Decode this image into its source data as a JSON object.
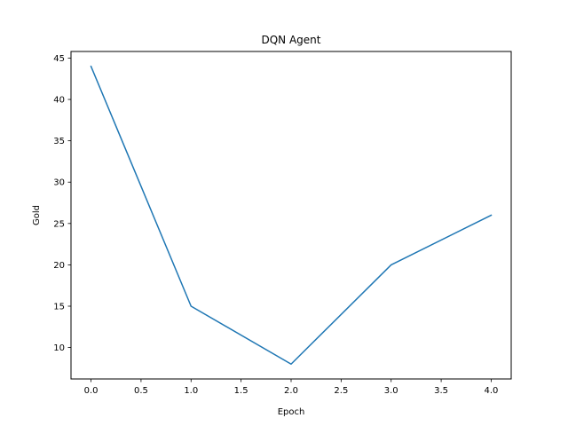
{
  "chart_data": {
    "type": "line",
    "title": "DQN Agent",
    "xlabel": "Epoch",
    "ylabel": "Gold",
    "x": [
      0,
      1,
      2,
      3,
      4
    ],
    "series": [
      {
        "values": [
          44,
          15,
          8,
          20,
          26
        ],
        "color": "#1f77b4"
      }
    ],
    "xlim": [
      -0.2,
      4.2
    ],
    "ylim": [
      6.2,
      45.8
    ],
    "xticks": [
      0.0,
      0.5,
      1.0,
      1.5,
      2.0,
      2.5,
      3.0,
      3.5,
      4.0
    ],
    "xtick_labels": [
      "0.0",
      "0.5",
      "1.0",
      "1.5",
      "2.0",
      "2.5",
      "3.0",
      "3.5",
      "4.0"
    ],
    "yticks": [
      10,
      15,
      20,
      25,
      30,
      35,
      40,
      45
    ],
    "ytick_labels": [
      "10",
      "15",
      "20",
      "25",
      "30",
      "35",
      "40",
      "45"
    ],
    "grid": false,
    "legend": "none"
  }
}
